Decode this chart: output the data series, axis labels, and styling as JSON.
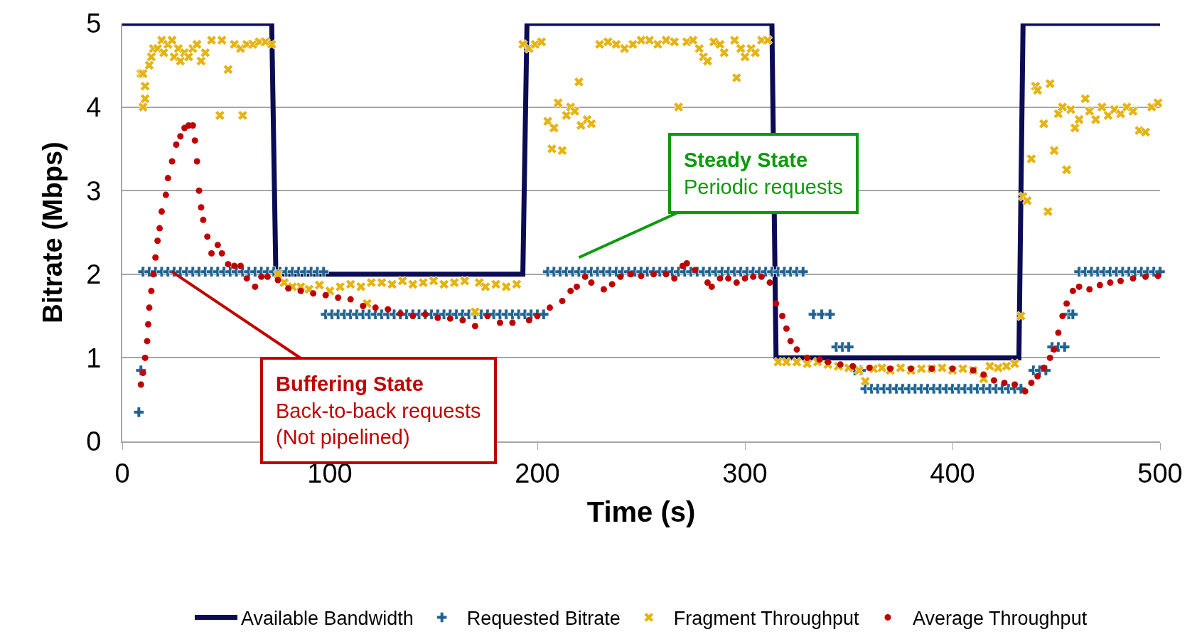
{
  "chart_data": {
    "type": "scatter",
    "xlabel": "Time (s)",
    "ylabel": "Bitrate (Mbps)",
    "xlim": [
      0,
      500
    ],
    "xticks": [
      0,
      100,
      200,
      300,
      400,
      500
    ],
    "ylim": [
      0,
      5
    ],
    "yticks": [
      0,
      1,
      2,
      3,
      4,
      5
    ],
    "grid": "y",
    "legend": "bottom",
    "annotations": [
      {
        "text": "Buffering State",
        "x": 24,
        "y": 2.03
      },
      "Back-to-back requests",
      "(Not pipelined)",
      "Steady State",
      "Periodic requests"
    ],
    "series": [
      {
        "name": "Available Bandwidth",
        "type": "line",
        "marker": "none",
        "line_style": "solid",
        "color": "#0c0c54",
        "x": [
          0,
          72,
          74,
          193,
          195,
          313,
          315,
          432,
          434,
          500
        ],
        "values": [
          5,
          5,
          2,
          2,
          5,
          5,
          1,
          1,
          5,
          5
        ]
      },
      {
        "name": "Requested Bitrate",
        "marker": "cross",
        "color": "#1f6391",
        "x": [
          8,
          9,
          10,
          13,
          16,
          19,
          22,
          25,
          28,
          31,
          34,
          37,
          40,
          43,
          46,
          49,
          52,
          55,
          58,
          61,
          64,
          67,
          70,
          73,
          76,
          79,
          82,
          85,
          88,
          91,
          94,
          97,
          98,
          101,
          104,
          107,
          110,
          113,
          116,
          119,
          122,
          125,
          128,
          131,
          134,
          137,
          140,
          143,
          146,
          149,
          152,
          155,
          158,
          161,
          164,
          167,
          170,
          173,
          176,
          179,
          182,
          185,
          188,
          191,
          194,
          197,
          200,
          203,
          205,
          208,
          211,
          214,
          217,
          220,
          223,
          226,
          229,
          232,
          235,
          238,
          241,
          244,
          247,
          250,
          253,
          256,
          259,
          262,
          265,
          268,
          271,
          274,
          277,
          280,
          283,
          286,
          289,
          292,
          295,
          298,
          301,
          304,
          307,
          310,
          313,
          316,
          319,
          322,
          325,
          328,
          333,
          337,
          341,
          344,
          347,
          350,
          353,
          356,
          358,
          361,
          364,
          367,
          370,
          373,
          376,
          379,
          382,
          385,
          388,
          391,
          394,
          397,
          400,
          403,
          406,
          409,
          412,
          415,
          418,
          421,
          424,
          427,
          430,
          433,
          439,
          442,
          445,
          448,
          451,
          454,
          456,
          458,
          461,
          464,
          467,
          470,
          473,
          476,
          479,
          482,
          485,
          488,
          491,
          494,
          497,
          500
        ],
        "values": [
          0.35,
          0.85,
          2.03,
          2.03,
          2.03,
          2.03,
          2.03,
          2.03,
          2.03,
          2.03,
          2.03,
          2.03,
          2.03,
          2.03,
          2.03,
          2.03,
          2.03,
          2.03,
          2.03,
          2.03,
          2.03,
          2.03,
          2.03,
          2.03,
          2.03,
          2.03,
          2.03,
          2.03,
          2.03,
          2.03,
          2.03,
          2.03,
          1.52,
          1.52,
          1.52,
          1.52,
          1.52,
          1.52,
          1.52,
          1.52,
          1.52,
          1.52,
          1.52,
          1.52,
          1.52,
          1.52,
          1.52,
          1.52,
          1.52,
          1.52,
          1.52,
          1.52,
          1.52,
          1.52,
          1.52,
          1.52,
          1.52,
          1.52,
          1.52,
          1.52,
          1.52,
          1.52,
          1.52,
          1.52,
          1.52,
          1.52,
          1.52,
          1.52,
          2.03,
          2.03,
          2.03,
          2.03,
          2.03,
          2.03,
          2.03,
          2.03,
          2.03,
          2.03,
          2.03,
          2.03,
          2.03,
          2.03,
          2.03,
          2.03,
          2.03,
          2.03,
          2.03,
          2.03,
          2.03,
          2.03,
          2.03,
          2.03,
          2.03,
          2.03,
          2.03,
          2.03,
          2.03,
          2.03,
          2.03,
          2.03,
          2.03,
          2.03,
          2.03,
          2.03,
          2.03,
          2.03,
          2.03,
          2.03,
          2.03,
          2.03,
          1.52,
          1.52,
          1.52,
          1.13,
          1.13,
          1.13,
          0.85,
          0.85,
          0.63,
          0.63,
          0.63,
          0.63,
          0.63,
          0.63,
          0.63,
          0.63,
          0.63,
          0.63,
          0.63,
          0.63,
          0.63,
          0.63,
          0.63,
          0.63,
          0.63,
          0.63,
          0.63,
          0.63,
          0.63,
          0.63,
          0.63,
          0.63,
          0.63,
          0.63,
          0.85,
          0.85,
          0.85,
          1.13,
          1.13,
          1.13,
          1.52,
          1.52,
          2.03,
          2.03,
          2.03,
          2.03,
          2.03,
          2.03,
          2.03,
          2.03,
          2.03,
          2.03,
          2.03,
          2.03,
          2.03,
          2.03
        ]
      },
      {
        "name": "Fragment Throughput",
        "marker": "x",
        "color": "#e6b310",
        "x": [
          9,
          10,
          11,
          11,
          10,
          13,
          14,
          15,
          17,
          19,
          20,
          22,
          24,
          25,
          27,
          28,
          30,
          32,
          34,
          36,
          38,
          40,
          43,
          47,
          48,
          51,
          54,
          57,
          58,
          60,
          63,
          66,
          69,
          72,
          75,
          78,
          82,
          86,
          90,
          95,
          100,
          105,
          110,
          115,
          118,
          120,
          125,
          130,
          135,
          140,
          145,
          150,
          155,
          160,
          165,
          170,
          172,
          175,
          180,
          185,
          190,
          193,
          196,
          199,
          202,
          205,
          207,
          208,
          210,
          212,
          214,
          216,
          218,
          220,
          221,
          224,
          226,
          230,
          234,
          238,
          242,
          246,
          250,
          254,
          258,
          262,
          266,
          268,
          272,
          275,
          278,
          280,
          282,
          285,
          288,
          290,
          295,
          296,
          298,
          300,
          303,
          305,
          308,
          311,
          316,
          320,
          325,
          330,
          335,
          340,
          345,
          350,
          355,
          358,
          362,
          366,
          370,
          375,
          380,
          385,
          390,
          395,
          400,
          405,
          410,
          415,
          418,
          422,
          426,
          430,
          433,
          434,
          436,
          438,
          440,
          441,
          444,
          446,
          447,
          449,
          451,
          453,
          455,
          457,
          459,
          461,
          464,
          466,
          469,
          472,
          475,
          478,
          481,
          484,
          487,
          490,
          493,
          496,
          499
        ],
        "values": [
          4.4,
          4.0,
          4.1,
          4.25,
          4.4,
          4.5,
          4.6,
          4.7,
          4.7,
          4.8,
          4.65,
          4.75,
          4.8,
          4.6,
          4.7,
          4.55,
          4.65,
          4.6,
          4.7,
          4.75,
          4.55,
          4.65,
          4.8,
          3.9,
          4.8,
          4.45,
          4.75,
          4.7,
          3.9,
          4.75,
          4.75,
          4.78,
          4.78,
          4.75,
          2.0,
          1.9,
          1.85,
          1.85,
          1.82,
          1.87,
          1.8,
          1.85,
          1.88,
          1.85,
          1.65,
          1.9,
          1.9,
          1.88,
          1.92,
          1.88,
          1.9,
          1.92,
          1.88,
          1.9,
          1.92,
          1.55,
          1.9,
          1.85,
          1.88,
          1.85,
          1.88,
          4.75,
          4.7,
          4.75,
          4.78,
          3.83,
          3.5,
          3.75,
          4.05,
          3.48,
          3.9,
          4.0,
          3.95,
          4.3,
          3.78,
          3.85,
          3.8,
          4.75,
          4.78,
          4.75,
          4.7,
          4.75,
          4.8,
          4.8,
          4.75,
          4.8,
          4.78,
          4.0,
          4.78,
          4.8,
          4.7,
          4.6,
          4.55,
          4.78,
          4.75,
          4.65,
          4.8,
          4.35,
          4.7,
          4.6,
          4.7,
          4.65,
          4.8,
          4.8,
          0.95,
          0.95,
          0.95,
          0.93,
          0.95,
          0.92,
          0.9,
          0.88,
          0.85,
          0.72,
          0.87,
          0.88,
          0.85,
          0.88,
          0.85,
          0.87,
          0.87,
          0.88,
          0.85,
          0.87,
          0.85,
          0.75,
          0.9,
          0.88,
          0.9,
          0.93,
          1.5,
          2.93,
          2.88,
          3.38,
          4.25,
          4.2,
          3.8,
          2.75,
          4.28,
          3.48,
          3.92,
          4.0,
          3.25,
          3.97,
          3.75,
          3.85,
          4.1,
          3.95,
          3.85,
          4.0,
          3.9,
          3.97,
          3.92,
          4.0,
          3.95,
          3.72,
          3.7,
          4.0,
          4.05
        ]
      },
      {
        "name": "Average Throughput",
        "marker": "circle",
        "color": "#c00000",
        "x": [
          9,
          10,
          11,
          12,
          12.5,
          13,
          14,
          15,
          16,
          17,
          18,
          19,
          21,
          22,
          24,
          26,
          28,
          30,
          32,
          34,
          35,
          36,
          37,
          38,
          39,
          41,
          43,
          46,
          48,
          51,
          54,
          57,
          60,
          64,
          67,
          70,
          75,
          80,
          86,
          92,
          98,
          104,
          110,
          116,
          122,
          128,
          134,
          140,
          146,
          152,
          158,
          164,
          170,
          176,
          182,
          188,
          196,
          200,
          206,
          212,
          216,
          219,
          223,
          226,
          232,
          236,
          240,
          245,
          250,
          256,
          262,
          266,
          270,
          272,
          276,
          282,
          284,
          288,
          292,
          296,
          300,
          304,
          308,
          312,
          315,
          318,
          320,
          322,
          325,
          330,
          336,
          340,
          346,
          352,
          360,
          370,
          380,
          390,
          400,
          410,
          415,
          420,
          425,
          430,
          435,
          438,
          441,
          444,
          447,
          449,
          451,
          453,
          455,
          458,
          461,
          466,
          471,
          476,
          481,
          487,
          493,
          499
        ],
        "values": [
          0.68,
          0.82,
          1.0,
          1.2,
          1.4,
          1.6,
          1.8,
          2.0,
          2.2,
          2.4,
          2.55,
          2.75,
          2.95,
          3.15,
          3.35,
          3.55,
          3.65,
          3.75,
          3.78,
          3.78,
          3.6,
          3.35,
          3.0,
          2.8,
          2.65,
          2.45,
          2.25,
          2.35,
          2.25,
          2.12,
          2.1,
          2.1,
          1.95,
          1.85,
          1.97,
          1.97,
          1.93,
          1.83,
          1.8,
          1.77,
          1.75,
          1.72,
          1.7,
          1.62,
          1.6,
          1.58,
          1.53,
          1.5,
          1.52,
          1.48,
          1.47,
          1.45,
          1.38,
          1.5,
          1.42,
          1.42,
          1.45,
          1.5,
          1.6,
          1.68,
          1.8,
          1.85,
          1.97,
          1.9,
          1.82,
          1.88,
          1.97,
          2.0,
          1.98,
          2.0,
          2.0,
          1.95,
          2.1,
          2.13,
          2.05,
          1.9,
          1.85,
          1.95,
          1.95,
          1.9,
          1.95,
          1.97,
          1.97,
          1.9,
          1.65,
          1.5,
          1.35,
          1.2,
          1.1,
          1.0,
          0.98,
          0.95,
          0.92,
          0.9,
          0.88,
          0.87,
          0.87,
          0.87,
          0.87,
          0.85,
          0.8,
          0.73,
          0.7,
          0.68,
          0.6,
          0.7,
          0.78,
          0.88,
          1.0,
          1.1,
          1.3,
          1.5,
          1.65,
          1.8,
          1.85,
          1.82,
          1.87,
          1.9,
          1.92,
          1.95,
          1.97,
          1.98
        ]
      }
    ]
  }
}
